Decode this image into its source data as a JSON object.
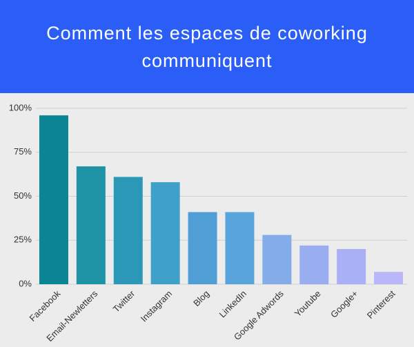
{
  "chart_data": {
    "type": "bar",
    "title": "Comment les espaces de coworking communiquent",
    "categories": [
      "Facebook",
      "Email-Newletters",
      "Twitter",
      "Instagram",
      "Blog",
      "LinkedIn",
      "Google Adwords",
      "Youtube",
      "Google+",
      "Pinterest"
    ],
    "values": [
      96,
      67,
      61,
      58,
      41,
      41,
      28,
      22,
      20,
      7
    ],
    "colors": [
      "#0b8593",
      "#1e93a6",
      "#2b98b8",
      "#3fa0c9",
      "#4f9fd6",
      "#5aa4de",
      "#84ace9",
      "#98aef0",
      "#aab0f5",
      "#bbb5fa"
    ],
    "ylim": [
      0,
      100
    ],
    "yticks": [
      {
        "value": 0,
        "label": "0%"
      },
      {
        "value": 25,
        "label": "25%"
      },
      {
        "value": 50,
        "label": "50%"
      },
      {
        "value": 75,
        "label": "75%"
      },
      {
        "value": 100,
        "label": "100%"
      }
    ],
    "grid": true
  }
}
